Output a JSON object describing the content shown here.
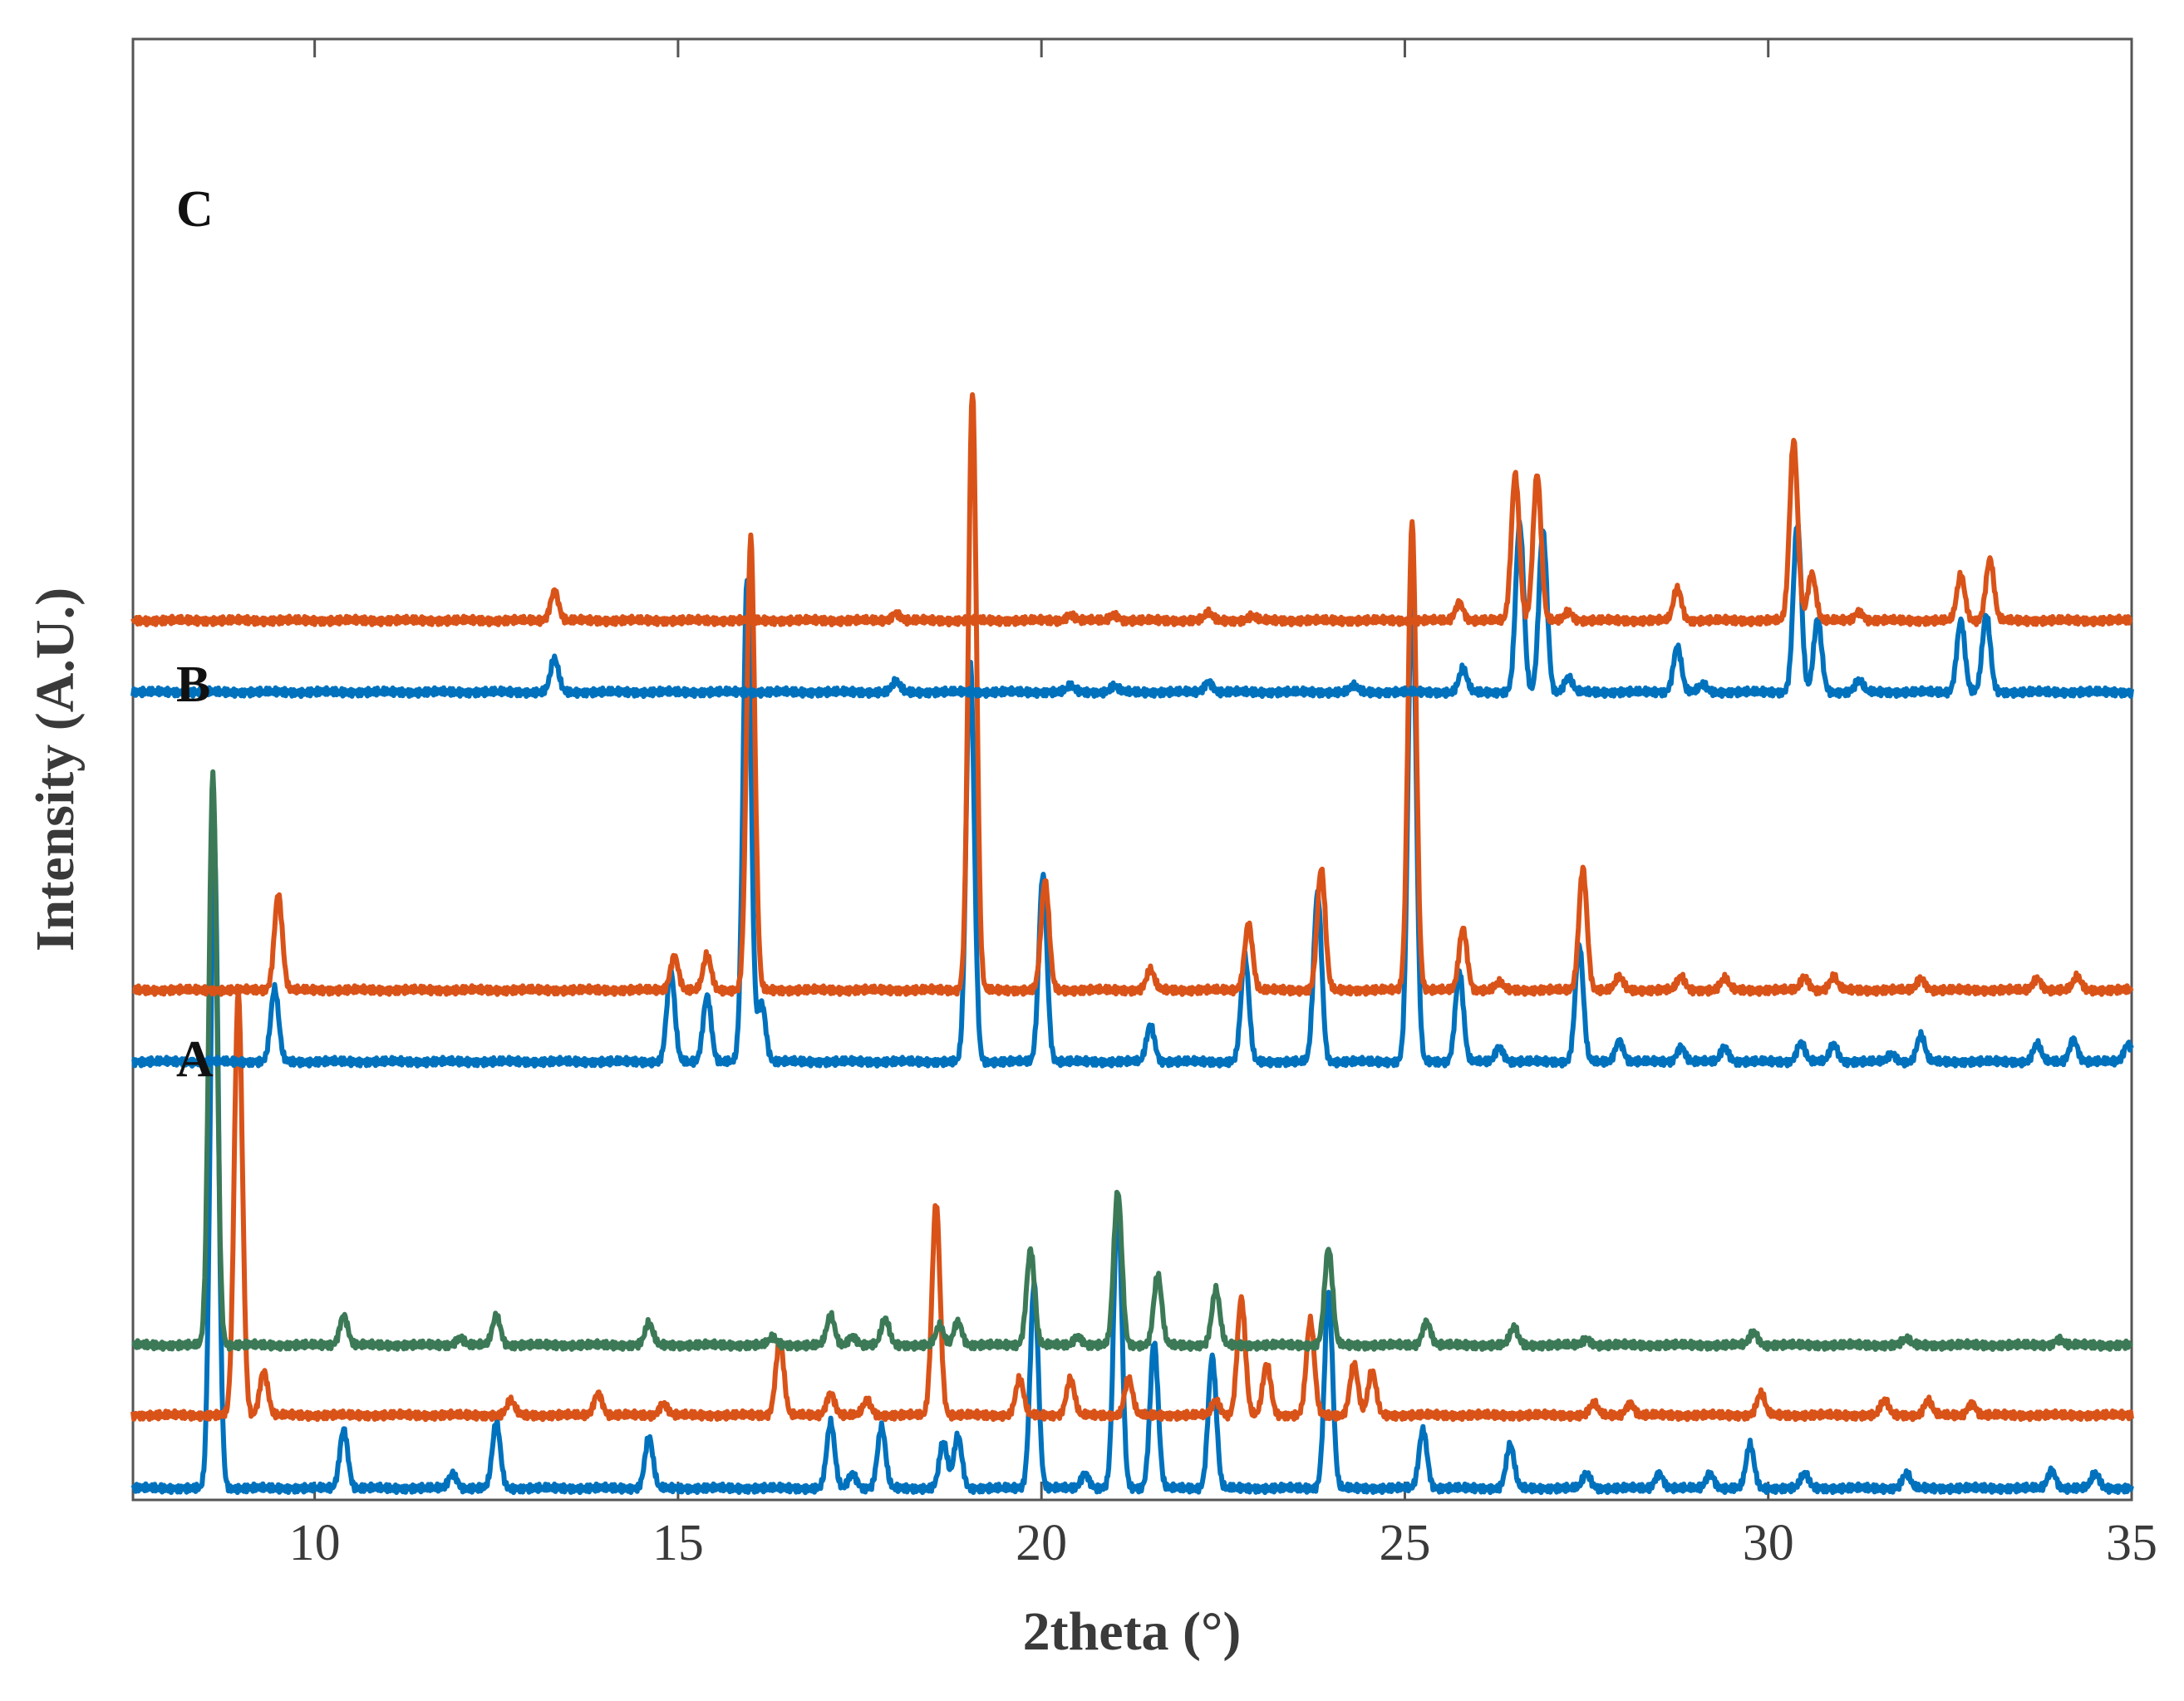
{
  "chart_data": {
    "type": "line",
    "xlabel": "2theta (°)",
    "ylabel": "Intensity (A.U.)",
    "xlim": [
      7.5,
      35
    ],
    "ylim": [
      0,
      100
    ],
    "x_ticks": [
      10,
      15,
      20,
      25,
      30,
      35
    ],
    "x_tick_labels": [
      "10",
      "15",
      "20",
      "25",
      "30",
      "35"
    ],
    "grid": false,
    "legend": "none",
    "panel_labels": [
      "A",
      "B",
      "C"
    ],
    "colors": {
      "blue": "#0072BD",
      "orange": "#D95319",
      "green": "#3C7A57",
      "axis": "#555555"
    },
    "series": [
      {
        "group": "A",
        "color": "#0072BD",
        "baseline": 0.8,
        "peaks": [
          [
            8.62,
            44
          ],
          [
            10.4,
            4
          ],
          [
            11.9,
            1
          ],
          [
            12.5,
            4.5
          ],
          [
            14.6,
            3.5
          ],
          [
            17.1,
            4.5
          ],
          [
            17.4,
            1
          ],
          [
            17.8,
            4.2
          ],
          [
            18.65,
            3.2
          ],
          [
            18.85,
            3.6
          ],
          [
            19.9,
            14
          ],
          [
            20.6,
            1
          ],
          [
            21.05,
            20
          ],
          [
            21.55,
            10
          ],
          [
            22.35,
            9
          ],
          [
            23.95,
            13.5
          ],
          [
            25.25,
            4
          ],
          [
            26.45,
            3
          ],
          [
            27.5,
            1
          ],
          [
            28.5,
            1
          ],
          [
            29.2,
            1
          ],
          [
            29.75,
            3
          ],
          [
            30.5,
            1
          ],
          [
            31.9,
            1
          ],
          [
            33.9,
            1.2
          ],
          [
            34.5,
            1
          ]
        ]
      },
      {
        "group": "A",
        "color": "#D95319",
        "baseline": 5.8,
        "peaks": [
          [
            8.95,
            29
          ],
          [
            9.3,
            3
          ],
          [
            12.7,
            1
          ],
          [
            13.9,
            1.5
          ],
          [
            14.8,
            0.8
          ],
          [
            16.4,
            5.2
          ],
          [
            17.1,
            1.5
          ],
          [
            17.6,
            1
          ],
          [
            18.55,
            14.5
          ],
          [
            19.7,
            2.5
          ],
          [
            20.4,
            2.5
          ],
          [
            21.2,
            2.5
          ],
          [
            22.4,
            1
          ],
          [
            22.75,
            8
          ],
          [
            23.1,
            3.5
          ],
          [
            23.7,
            6.5
          ],
          [
            24.3,
            3.5
          ],
          [
            24.55,
            3
          ],
          [
            27.6,
            0.8
          ],
          [
            28.1,
            0.8
          ],
          [
            29.9,
            1.5
          ],
          [
            31.6,
            1
          ],
          [
            32.2,
            1
          ],
          [
            32.8,
            0.8
          ]
        ]
      },
      {
        "group": "A",
        "color": "#3C7A57",
        "baseline": 10.6,
        "peaks": [
          [
            8.6,
            39
          ],
          [
            10.4,
            2
          ],
          [
            12,
            0.5
          ],
          [
            12.5,
            2
          ],
          [
            14.6,
            1.5
          ],
          [
            16.3,
            0.5
          ],
          [
            17.1,
            2
          ],
          [
            17.4,
            0.6
          ],
          [
            17.85,
            1.8
          ],
          [
            18.6,
            1.3
          ],
          [
            18.85,
            1.6
          ],
          [
            19.85,
            6.5
          ],
          [
            20.5,
            0.6
          ],
          [
            21.05,
            10.5
          ],
          [
            21.6,
            4.8
          ],
          [
            22.4,
            3.8
          ],
          [
            23.95,
            6.6
          ],
          [
            25.3,
            1.6
          ],
          [
            26.5,
            1.2
          ],
          [
            27.5,
            0.4
          ],
          [
            29.8,
            0.9
          ],
          [
            31.9,
            0.4
          ],
          [
            34,
            0.4
          ]
        ]
      },
      {
        "group": "B",
        "color": "#0072BD",
        "baseline": 30,
        "peaks": [
          [
            9.45,
            5
          ],
          [
            14.9,
            6.2
          ],
          [
            15.4,
            4.5
          ],
          [
            15.95,
            33
          ],
          [
            16.15,
            4
          ],
          [
            19.02,
            27.5
          ],
          [
            20.02,
            12.8
          ],
          [
            21.5,
            2.5
          ],
          [
            22.8,
            7.2
          ],
          [
            23.8,
            11.5
          ],
          [
            25.1,
            33
          ],
          [
            25.75,
            6.2
          ],
          [
            26.3,
            1
          ],
          [
            27.4,
            8
          ],
          [
            27.95,
            1.4
          ],
          [
            28.8,
            1
          ],
          [
            29.4,
            1
          ],
          [
            30.45,
            1.3
          ],
          [
            30.9,
            1.2
          ],
          [
            31.7,
            0.5
          ],
          [
            32.1,
            1.8
          ],
          [
            33.7,
            1.2
          ],
          [
            34.2,
            1.5
          ],
          [
            34.95,
            1.2
          ]
        ]
      },
      {
        "group": "B",
        "color": "#D95319",
        "baseline": 34.9,
        "peaks": [
          [
            9.5,
            6.5
          ],
          [
            14.95,
            2.3
          ],
          [
            15.4,
            2.4
          ],
          [
            16,
            31
          ],
          [
            19.05,
            41
          ],
          [
            20.05,
            7.5
          ],
          [
            21.5,
            1.4
          ],
          [
            22.85,
            4.5
          ],
          [
            23.85,
            8.3
          ],
          [
            25.1,
            32
          ],
          [
            25.8,
            4.2
          ],
          [
            26.3,
            0.5
          ],
          [
            27.45,
            8.3
          ],
          [
            27.95,
            0.9
          ],
          [
            28.8,
            0.9
          ],
          [
            29.4,
            0.8
          ],
          [
            30.5,
            0.9
          ],
          [
            30.9,
            0.9
          ],
          [
            32.1,
            0.8
          ],
          [
            33.7,
            0.8
          ],
          [
            34.25,
            0.9
          ]
        ]
      },
      {
        "group": "C",
        "color": "#0072BD",
        "baseline": 55.3,
        "peaks": [
          [
            13.3,
            2.3
          ],
          [
            18,
            0.7
          ],
          [
            20.4,
            0.4
          ],
          [
            21,
            0.4
          ],
          [
            22.3,
            0.7
          ],
          [
            24.3,
            0.4
          ],
          [
            25.8,
            1.6
          ],
          [
            26.58,
            11.5
          ],
          [
            26.9,
            11
          ],
          [
            27.25,
            1
          ],
          [
            28.75,
            3.1
          ],
          [
            29.1,
            0.5
          ],
          [
            30.4,
            11.5
          ],
          [
            30.68,
            5
          ],
          [
            31.25,
            0.8
          ],
          [
            32.65,
            4.9
          ],
          [
            33,
            5.3
          ]
        ]
      },
      {
        "group": "C",
        "color": "#D95319",
        "baseline": 60.2,
        "peaks": [
          [
            13.3,
            2
          ],
          [
            18,
            0.5
          ],
          [
            20.4,
            0.4
          ],
          [
            21,
            0.4
          ],
          [
            22.3,
            0.5
          ],
          [
            22.9,
            0.3
          ],
          [
            25.75,
            1.2
          ],
          [
            26.52,
            10
          ],
          [
            26.82,
            10
          ],
          [
            27.25,
            0.6
          ],
          [
            28.75,
            2.2
          ],
          [
            30.35,
            12.3
          ],
          [
            30.6,
            3.2
          ],
          [
            31.25,
            0.6
          ],
          [
            32.65,
            3.1
          ],
          [
            33.05,
            4.2
          ]
        ]
      }
    ]
  }
}
